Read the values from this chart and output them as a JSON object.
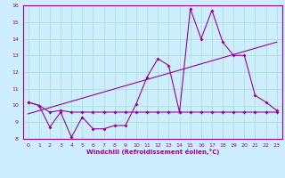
{
  "xlabel": "Windchill (Refroidissement éolien,°C)",
  "ylabel": "",
  "bg_color": "#cceeff",
  "line_color": "#990099",
  "grid_color": "#aaddcc",
  "axis_color": "#660066",
  "xlim": [
    -0.5,
    23.5
  ],
  "ylim": [
    8,
    16
  ],
  "xticks": [
    0,
    1,
    2,
    3,
    4,
    5,
    6,
    7,
    8,
    9,
    10,
    11,
    12,
    13,
    14,
    15,
    16,
    17,
    18,
    19,
    20,
    21,
    22,
    23
  ],
  "yticks": [
    8,
    9,
    10,
    11,
    12,
    13,
    14,
    15,
    16
  ],
  "series1_x": [
    0,
    1,
    2,
    3,
    4,
    5,
    6,
    7,
    8,
    9,
    10,
    11,
    12,
    13,
    14,
    15,
    16,
    17,
    18,
    19,
    20,
    21,
    22,
    23
  ],
  "series1_y": [
    10.2,
    10.0,
    8.7,
    9.6,
    8.1,
    9.3,
    8.6,
    8.6,
    8.8,
    8.8,
    10.1,
    11.7,
    12.8,
    12.4,
    9.6,
    15.8,
    14.0,
    15.7,
    13.8,
    13.0,
    13.0,
    10.6,
    10.2,
    9.7
  ],
  "series2_x": [
    0,
    1,
    2,
    3,
    4,
    5,
    6,
    7,
    8,
    9,
    10,
    11,
    12,
    13,
    14,
    15,
    16,
    17,
    18,
    19,
    20,
    21,
    22,
    23
  ],
  "series2_y": [
    10.2,
    10.0,
    9.6,
    9.7,
    9.6,
    9.6,
    9.6,
    9.6,
    9.6,
    9.6,
    9.6,
    9.6,
    9.6,
    9.6,
    9.6,
    9.6,
    9.6,
    9.6,
    9.6,
    9.6,
    9.6,
    9.6,
    9.6,
    9.6
  ],
  "trend_x": [
    0,
    23
  ],
  "trend_y": [
    9.5,
    13.8
  ]
}
